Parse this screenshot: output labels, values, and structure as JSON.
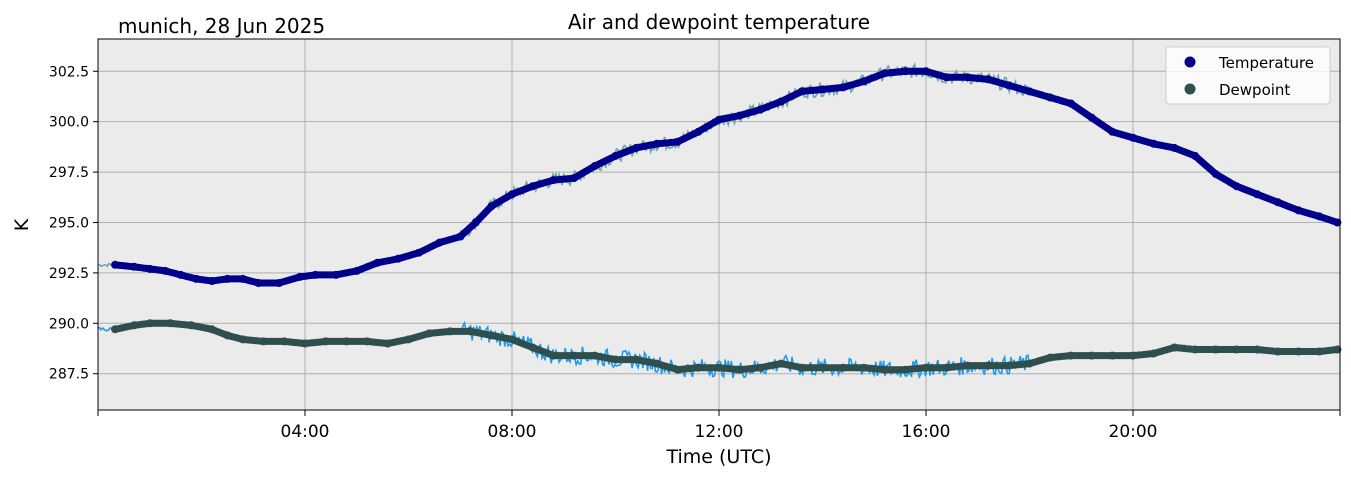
{
  "chart_data": {
    "type": "line",
    "title": "Air and dewpoint temperature",
    "subtitle": "munich, 28 Jun 2025",
    "xlabel": "Time (UTC)",
    "ylabel": "K",
    "xlim": [
      "00:00",
      "24:00"
    ],
    "ylim": [
      285.7,
      304.1
    ],
    "x_tick_labels": [
      "04:00",
      "08:00",
      "12:00",
      "16:00",
      "20:00"
    ],
    "x_tick_hours": [
      4,
      8,
      12,
      16,
      20
    ],
    "y_ticks": [
      287.5,
      290.0,
      292.5,
      295.0,
      297.5,
      300.0,
      302.5
    ],
    "y_tick_labels": [
      "287.5",
      "290.0",
      "292.5",
      "295.0",
      "297.5",
      "300.0",
      "302.5"
    ],
    "grid": true,
    "legend_position": "top-right",
    "colors": {
      "background": "#ebebeb",
      "grid": "#b0b0b0",
      "temperature": "#00008b",
      "temperature_raw": "#6fa8a8",
      "dewpoint": "#2f4f4f",
      "dewpoint_raw": "#1e9be8"
    },
    "series": [
      {
        "name": "Temperature",
        "marker": "dot",
        "x": [
          0.33,
          0.7,
          1.0,
          1.3,
          1.6,
          1.9,
          2.2,
          2.5,
          2.8,
          3.1,
          3.5,
          3.9,
          4.2,
          4.6,
          5.0,
          5.4,
          5.8,
          6.2,
          6.6,
          7.0,
          7.3,
          7.6,
          8.0,
          8.4,
          8.8,
          9.2,
          9.6,
          10.0,
          10.4,
          10.8,
          11.2,
          11.6,
          12.0,
          12.4,
          12.8,
          13.2,
          13.6,
          14.0,
          14.4,
          14.8,
          15.2,
          15.6,
          16.0,
          16.4,
          16.8,
          17.2,
          17.6,
          18.0,
          18.4,
          18.8,
          19.2,
          19.6,
          20.0,
          20.4,
          20.8,
          21.2,
          21.6,
          22.0,
          22.4,
          22.8,
          23.2,
          23.6,
          23.95
        ],
        "y": [
          292.9,
          292.8,
          292.7,
          292.6,
          292.4,
          292.2,
          292.1,
          292.2,
          292.2,
          292.0,
          292.0,
          292.3,
          292.4,
          292.4,
          292.6,
          293.0,
          293.2,
          293.5,
          294.0,
          294.3,
          295.0,
          295.8,
          296.4,
          296.8,
          297.1,
          297.2,
          297.8,
          298.3,
          298.7,
          298.9,
          299.0,
          299.5,
          300.1,
          300.3,
          300.6,
          301.0,
          301.5,
          301.6,
          301.7,
          302.0,
          302.4,
          302.5,
          302.5,
          302.2,
          302.2,
          302.1,
          301.8,
          301.5,
          301.2,
          300.9,
          300.2,
          299.5,
          299.2,
          298.9,
          298.7,
          298.3,
          297.4,
          296.8,
          296.4,
          296.0,
          295.6,
          295.3,
          295.0
        ]
      },
      {
        "name": "Dewpoint",
        "marker": "dot",
        "x": [
          0.33,
          0.7,
          1.0,
          1.4,
          1.8,
          2.2,
          2.5,
          2.8,
          3.2,
          3.6,
          4.0,
          4.4,
          4.8,
          5.2,
          5.6,
          6.0,
          6.4,
          6.8,
          7.2,
          7.6,
          8.0,
          8.4,
          8.8,
          9.2,
          9.6,
          10.0,
          10.4,
          10.8,
          11.2,
          11.6,
          12.0,
          12.4,
          12.8,
          13.2,
          13.6,
          14.0,
          14.4,
          14.8,
          15.2,
          15.6,
          16.0,
          16.4,
          16.8,
          17.2,
          17.6,
          18.0,
          18.4,
          18.8,
          19.2,
          19.6,
          20.0,
          20.4,
          20.8,
          21.2,
          21.6,
          22.0,
          22.4,
          22.8,
          23.2,
          23.6,
          23.95
        ],
        "y": [
          289.7,
          289.9,
          290.0,
          290.0,
          289.9,
          289.7,
          289.4,
          289.2,
          289.1,
          289.1,
          289.0,
          289.1,
          289.1,
          289.1,
          289.0,
          289.2,
          289.5,
          289.6,
          289.6,
          289.4,
          289.2,
          288.8,
          288.4,
          288.4,
          288.4,
          288.2,
          288.2,
          288.0,
          287.7,
          287.8,
          287.8,
          287.7,
          287.8,
          288.0,
          287.8,
          287.8,
          287.8,
          287.8,
          287.7,
          287.7,
          287.8,
          287.8,
          287.9,
          287.9,
          287.9,
          288.0,
          288.3,
          288.4,
          288.4,
          288.4,
          288.4,
          288.5,
          288.8,
          288.7,
          288.7,
          288.7,
          288.7,
          288.6,
          288.6,
          288.6,
          288.7
        ]
      }
    ]
  }
}
